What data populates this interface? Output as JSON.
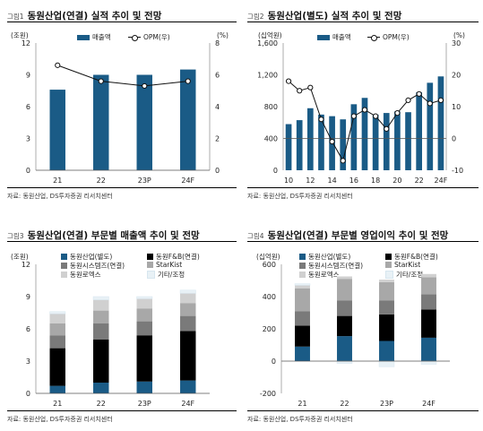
{
  "charts": [
    {
      "fig_no": "그림1",
      "title": "동원산업(연결) 실적 추이 및 전망",
      "source": "자료: 동원산업, DS투자증권 리서치센터",
      "legend": {
        "bar": "매출액",
        "line": "OPM(우)"
      },
      "units": {
        "left": "(조원)",
        "right": "(%)"
      },
      "left_ticks": [
        "12",
        "9",
        "6",
        "3",
        "0"
      ],
      "right_ticks": [
        "8",
        "6",
        "4",
        "2",
        "0"
      ],
      "categories": [
        "21",
        "22",
        "23P",
        "24F"
      ]
    },
    {
      "fig_no": "그림2",
      "title": "동원산업(별도) 실적 추이 및 전망",
      "source": "자료: 동원산업, DS투자증권 리서치센터",
      "legend": {
        "bar": "매출액",
        "line": "OPM(우)"
      },
      "units": {
        "left": "(십억원)",
        "right": "(%)"
      },
      "left_ticks": [
        "1,600",
        "1,200",
        "800",
        "400",
        "0"
      ],
      "right_ticks": [
        "30",
        "20",
        "10",
        "0",
        "-10"
      ],
      "categories": [
        "10",
        "12",
        "14",
        "16",
        "18",
        "20",
        "22",
        "24F"
      ]
    },
    {
      "fig_no": "그림3",
      "title": "동원산업(연결) 부문별 매출액 추이 및 전망",
      "source": "자료: 동원산업, DS투자증권 리서치센터",
      "legend": [
        "동원산업(별도)",
        "동원F&B(연결)",
        "동원시스템즈(연결)",
        "StarKist",
        "동원로엑스",
        "기타/조정"
      ],
      "units": {
        "left": "(조원)"
      },
      "left_ticks": [
        "12",
        "9",
        "6",
        "3",
        "0"
      ],
      "categories": [
        "21",
        "22",
        "23P",
        "24F"
      ]
    },
    {
      "fig_no": "그림4",
      "title": "동원산업(연결) 부문별 영업이익 추이 및 전망",
      "source": "자료: 동원산업, DS투자증권 리서치센터",
      "legend": [
        "동원산업(별도)",
        "동원F&B(연결)",
        "동원시스템즈(연결)",
        "StarKist",
        "동원로엑스",
        "기타/조정"
      ],
      "units": {
        "left": "(십억원)"
      },
      "left_ticks": [
        "600",
        "400",
        "200",
        "0",
        "-200"
      ],
      "categories": [
        "21",
        "22",
        "23P",
        "24F"
      ]
    }
  ],
  "chart_data": [
    {
      "type": "bar",
      "title": "동원산업(연결) 실적 추이 및 전망",
      "categories": [
        "21",
        "22",
        "23P",
        "24F"
      ],
      "series": [
        {
          "name": "매출액",
          "type": "bar",
          "axis": "left",
          "values": [
            7.6,
            9.0,
            9.0,
            9.5
          ]
        },
        {
          "name": "OPM(우)",
          "type": "line",
          "axis": "right",
          "values": [
            6.6,
            5.6,
            5.3,
            5.6
          ]
        }
      ],
      "ylim_left": [
        0,
        12
      ],
      "ylim_right": [
        0,
        8
      ],
      "colors": {
        "bar": "#1a5b86",
        "line": "#111111"
      }
    },
    {
      "type": "bar",
      "title": "동원산업(별도) 실적 추이 및 전망",
      "x": [
        10,
        11,
        12,
        13,
        14,
        15,
        16,
        17,
        18,
        19,
        20,
        21,
        22,
        23,
        24
      ],
      "categories": [
        "10",
        "12",
        "14",
        "16",
        "18",
        "20",
        "22",
        "24F"
      ],
      "series": [
        {
          "name": "매출액",
          "type": "bar",
          "axis": "left",
          "values": [
            580,
            630,
            780,
            700,
            680,
            640,
            830,
            910,
            700,
            720,
            740,
            730,
            980,
            1100,
            1180
          ]
        },
        {
          "name": "OPM(우)",
          "type": "line",
          "axis": "right",
          "values": [
            18,
            15,
            16,
            6,
            -1,
            -7,
            7,
            9,
            7,
            3,
            8,
            12,
            14,
            11,
            12
          ]
        }
      ],
      "ylim_left": [
        0,
        1600
      ],
      "ylim_right": [
        -10,
        30
      ],
      "colors": {
        "bar": "#1a5b86",
        "line": "#111111"
      }
    },
    {
      "type": "bar",
      "stacked": true,
      "title": "동원산업(연결) 부문별 매출액 추이 및 전망",
      "categories": [
        "21",
        "22",
        "23P",
        "24F"
      ],
      "series": [
        {
          "name": "동원산업(별도)",
          "values": [
            0.7,
            1.0,
            1.1,
            1.2
          ]
        },
        {
          "name": "동원F&B(연결)",
          "values": [
            3.5,
            4.0,
            4.3,
            4.6
          ]
        },
        {
          "name": "동원시스템즈(연결)",
          "values": [
            1.2,
            1.5,
            1.3,
            1.4
          ]
        },
        {
          "name": "StarKist",
          "values": [
            1.1,
            1.2,
            1.2,
            1.2
          ]
        },
        {
          "name": "동원로엑스",
          "values": [
            0.9,
            1.0,
            0.9,
            0.9
          ]
        },
        {
          "name": "기타/조정",
          "values": [
            0.2,
            0.3,
            0.2,
            0.3
          ]
        }
      ],
      "ylim": [
        0,
        12
      ],
      "colors": [
        "#1a5b86",
        "#000000",
        "#7a7a7a",
        "#a8a8a8",
        "#d0d0d0",
        "#e8f1f6"
      ]
    },
    {
      "type": "bar",
      "stacked": true,
      "title": "동원산업(연결) 부문별 영업이익 추이 및 전망",
      "categories": [
        "21",
        "22",
        "23P",
        "24F"
      ],
      "series": [
        {
          "name": "동원산업(별도)",
          "values": [
            90,
            155,
            125,
            145
          ]
        },
        {
          "name": "동원F&B(연결)",
          "values": [
            130,
            125,
            165,
            175
          ]
        },
        {
          "name": "동원시스템즈(연결)",
          "values": [
            90,
            95,
            85,
            95
          ]
        },
        {
          "name": "StarKist",
          "values": [
            140,
            135,
            115,
            105
          ]
        },
        {
          "name": "동원로엑스",
          "values": [
            20,
            15,
            15,
            20
          ]
        },
        {
          "name": "기타/조정",
          "values": [
            10,
            -15,
            -35,
            -20
          ]
        }
      ],
      "ylim": [
        -200,
        600
      ],
      "colors": [
        "#1a5b86",
        "#000000",
        "#7a7a7a",
        "#a8a8a8",
        "#d0d0d0",
        "#e8f1f6"
      ]
    }
  ]
}
